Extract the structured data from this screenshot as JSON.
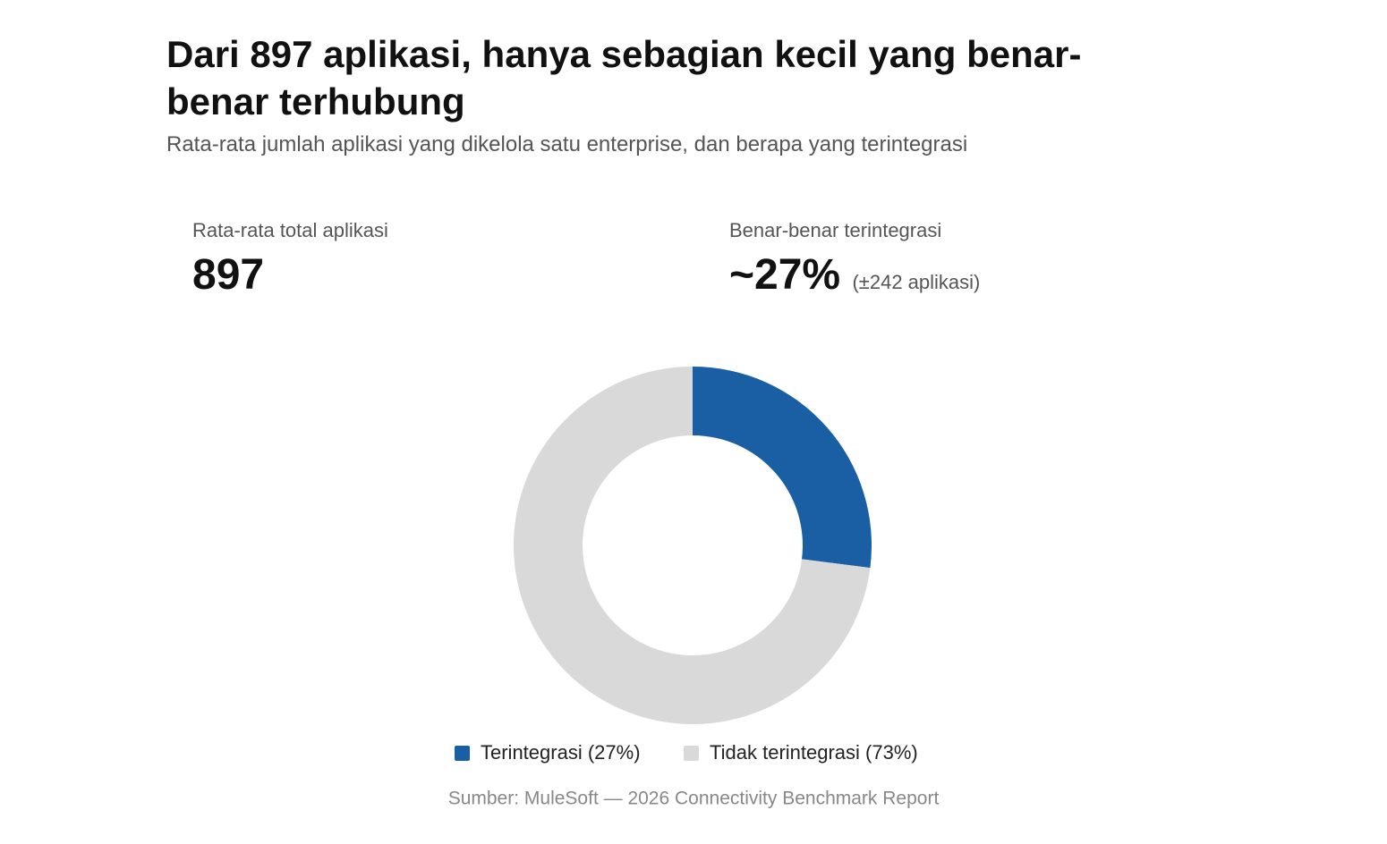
{
  "chart_data": {
    "type": "donut",
    "title": "Dari 897 aplikasi, hanya sebagian kecil yang benar-benar terhubung",
    "subtitle": "Rata-rata jumlah aplikasi yang dikelola satu enterprise, dan berapa yang terintegrasi",
    "stats": [
      {
        "label": "Rata-rata total aplikasi",
        "value": 897
      },
      {
        "label": "Benar-benar terintegrasi",
        "value": "~27%",
        "note": "(±242 aplikasi)"
      }
    ],
    "categories": [
      "Terintegrasi (27%)",
      "Tidak terintegrasi (73%)"
    ],
    "values": [
      27,
      73
    ],
    "colors": [
      "#1a5fa3",
      "#d9d9d9"
    ],
    "source": "Sumber: MuleSoft — 2026 Connectivity Benchmark Report"
  }
}
